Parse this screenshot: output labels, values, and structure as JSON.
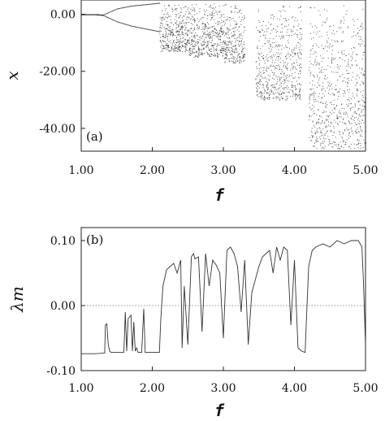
{
  "chart_data": [
    {
      "type": "scatter",
      "panel_label": "(a)",
      "title": "",
      "xlabel": "f",
      "ylabel": "x",
      "xlim": [
        1.0,
        5.0
      ],
      "ylim": [
        -48.0,
        5.0
      ],
      "x_ticks": [
        "1.00",
        "2.00",
        "3.00",
        "4.00",
        "5.00"
      ],
      "y_ticks": [
        "0.00",
        "-20.00",
        "-40.00"
      ],
      "x_tick_values": [
        1.0,
        2.0,
        3.0,
        4.0,
        5.0
      ],
      "y_tick_values": [
        0.0,
        -20.0,
        -40.0
      ],
      "grid": false,
      "point_color": "#2a2a2a",
      "branches": [
        {
          "name": "fixed point",
          "x": [
            1.0,
            1.2,
            1.3
          ],
          "upper": [
            0.0,
            0.0,
            -0.2
          ],
          "lower": [
            0.0,
            0.0,
            -0.2
          ]
        },
        {
          "name": "period-2",
          "x": [
            1.3,
            1.5,
            1.7,
            1.9,
            2.1
          ],
          "upper": [
            -0.2,
            2.0,
            3.0,
            3.5,
            4.0
          ],
          "lower": [
            -0.2,
            -2.5,
            -4.0,
            -5.0,
            -6.0
          ]
        }
      ],
      "chaotic_bands": [
        {
          "x": [
            2.1,
            2.5
          ],
          "range": [
            -13.0,
            4.0
          ]
        },
        {
          "x": [
            2.5,
            3.0
          ],
          "range": [
            -15.0,
            4.0
          ]
        },
        {
          "x": [
            3.0,
            3.3
          ],
          "range": [
            -17.0,
            4.0
          ]
        },
        {
          "x": [
            3.45,
            4.1
          ],
          "range": [
            -30.0,
            4.0
          ]
        },
        {
          "x": [
            4.2,
            5.0
          ],
          "range": [
            -47.0,
            4.0
          ]
        }
      ]
    },
    {
      "type": "line",
      "panel_label": "(b)",
      "title": "",
      "xlabel": "f",
      "ylabel": "λm",
      "xlim": [
        1.0,
        5.0
      ],
      "ylim": [
        -0.1,
        0.12
      ],
      "x_ticks": [
        "1.00",
        "2.00",
        "3.00",
        "4.00",
        "5.00"
      ],
      "y_ticks": [
        "0.10",
        "0.00",
        "-0.10"
      ],
      "x_tick_values": [
        1.0,
        2.0,
        3.0,
        4.0,
        5.0
      ],
      "y_tick_values": [
        0.1,
        0.0,
        -0.1
      ],
      "reference_line": 0.0,
      "grid": false,
      "line_color": "#333333",
      "x": [
        1.0,
        1.2,
        1.33,
        1.34,
        1.36,
        1.38,
        1.4,
        1.42,
        1.6,
        1.62,
        1.64,
        1.66,
        1.7,
        1.72,
        1.74,
        1.76,
        1.78,
        1.8,
        1.85,
        1.88,
        1.9,
        2.0,
        2.1,
        2.12,
        2.15,
        2.2,
        2.3,
        2.35,
        2.4,
        2.42,
        2.45,
        2.5,
        2.55,
        2.58,
        2.6,
        2.65,
        2.7,
        2.75,
        2.8,
        2.85,
        2.9,
        2.95,
        3.0,
        3.05,
        3.1,
        3.15,
        3.2,
        3.25,
        3.3,
        3.35,
        3.4,
        3.45,
        3.5,
        3.55,
        3.6,
        3.65,
        3.7,
        3.75,
        3.8,
        3.85,
        3.9,
        3.95,
        4.0,
        4.05,
        4.1,
        4.15,
        4.2,
        4.25,
        4.3,
        4.4,
        4.5,
        4.6,
        4.7,
        4.8,
        4.9,
        4.95,
        4.97,
        5.0
      ],
      "y": [
        -0.074,
        -0.074,
        -0.073,
        -0.03,
        -0.028,
        -0.06,
        -0.07,
        -0.072,
        -0.072,
        -0.01,
        -0.07,
        -0.02,
        -0.015,
        -0.07,
        -0.025,
        -0.07,
        -0.065,
        -0.072,
        -0.072,
        -0.005,
        -0.072,
        -0.072,
        -0.072,
        -0.02,
        0.03,
        0.055,
        0.065,
        0.05,
        0.07,
        -0.065,
        0.03,
        -0.06,
        0.075,
        0.08,
        0.072,
        0.075,
        -0.04,
        0.08,
        0.03,
        0.07,
        0.062,
        0.05,
        -0.05,
        0.085,
        0.09,
        0.08,
        0.06,
        -0.01,
        0.07,
        -0.06,
        0.02,
        0.04,
        0.06,
        0.075,
        0.08,
        0.085,
        0.05,
        0.09,
        0.07,
        0.09,
        0.085,
        -0.03,
        0.07,
        -0.065,
        -0.07,
        -0.072,
        0.06,
        0.085,
        0.09,
        0.095,
        0.09,
        0.1,
        0.095,
        0.1,
        0.1,
        0.09,
        0.04,
        -0.06
      ]
    }
  ]
}
